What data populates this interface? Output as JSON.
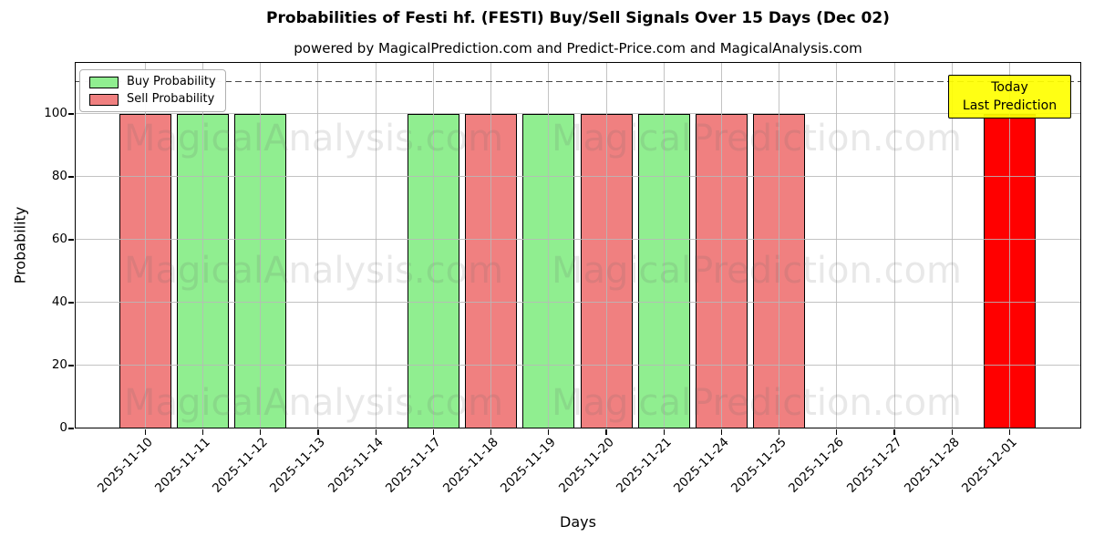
{
  "legend": {
    "items": [
      {
        "label": "Buy Probability",
        "color": "#90EE90"
      },
      {
        "label": "Sell Probability",
        "color": "#F08080"
      }
    ]
  },
  "annotation_box": {
    "line1": "Today",
    "line2": "Last Prediction",
    "bg_color": "#FFFF00"
  },
  "watermarks": {
    "left_text": "MagicalAnalysis.com",
    "right_text": "MagicalPrediction.com"
  },
  "colors": {
    "buy": "#90EE90",
    "sell": "#F08080",
    "today_bar": "#FF0000",
    "grid": "#b9b9b9",
    "threshold_line": "#4a4a4a",
    "annotation_bg": "#FFFF00"
  },
  "chart_data": {
    "type": "bar",
    "title": "Probabilities of Festi hf. (FESTI) Buy/Sell Signals Over 15 Days (Dec 02)",
    "subtitle": "powered by MagicalPrediction.com and Predict-Price.com and MagicalAnalysis.com",
    "xlabel": "Days",
    "ylabel": "Probability",
    "ylim": [
      0,
      116.5
    ],
    "yticks": [
      0,
      20,
      40,
      60,
      80,
      100
    ],
    "grid": true,
    "legend_position": "upper left",
    "threshold_line_y": 110,
    "categories": [
      "2025-11-10",
      "2025-11-11",
      "2025-11-12",
      "2025-11-13",
      "2025-11-14",
      "2025-11-17",
      "2025-11-18",
      "2025-11-19",
      "2025-11-20",
      "2025-11-21",
      "2025-11-24",
      "2025-11-25",
      "2025-11-26",
      "2025-11-27",
      "2025-11-28",
      "2025-12-01"
    ],
    "series": [
      {
        "name": "Buy Probability",
        "color": "#90EE90",
        "values": [
          0,
          100,
          100,
          0,
          0,
          100,
          0,
          100,
          0,
          100,
          0,
          0,
          0,
          0,
          0,
          0
        ]
      },
      {
        "name": "Sell Probability",
        "color": "#F08080",
        "values": [
          100,
          0,
          0,
          0,
          0,
          0,
          100,
          0,
          100,
          0,
          100,
          100,
          0,
          0,
          0,
          0
        ]
      },
      {
        "name": "Last Prediction (Today)",
        "color": "#FF0000",
        "values": [
          0,
          0,
          0,
          0,
          0,
          0,
          0,
          0,
          0,
          0,
          0,
          0,
          0,
          0,
          0,
          100
        ]
      }
    ]
  }
}
